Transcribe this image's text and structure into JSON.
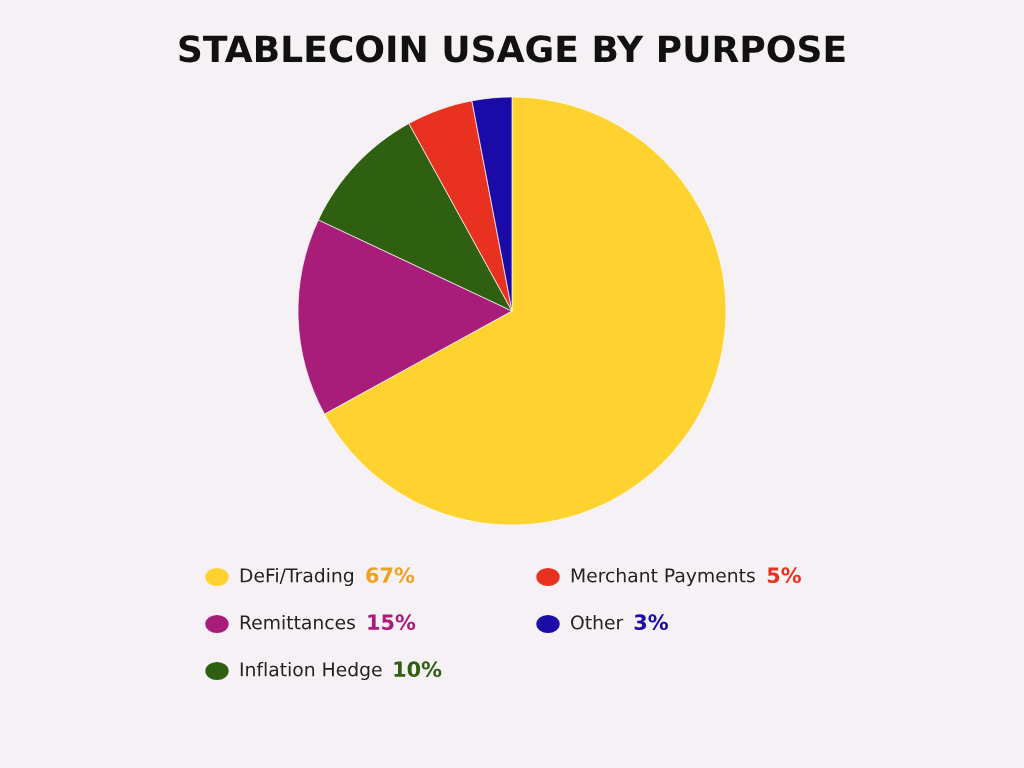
{
  "chart_data": {
    "type": "pie",
    "title": "STABLECOIN USAGE BY PURPOSE",
    "categories": [
      "DeFi/Trading",
      "Remittances",
      "Inflation Hedge",
      "Merchant Payments",
      "Other"
    ],
    "values": [
      67,
      15,
      10,
      5,
      3
    ],
    "colors": [
      "#fed330",
      "#a81c7a",
      "#2f5f10",
      "#e8321f",
      "#1a0aa8"
    ],
    "value_labels": [
      "67%",
      "15%",
      "10%",
      "5%",
      "3%"
    ],
    "legend": "bottom"
  }
}
